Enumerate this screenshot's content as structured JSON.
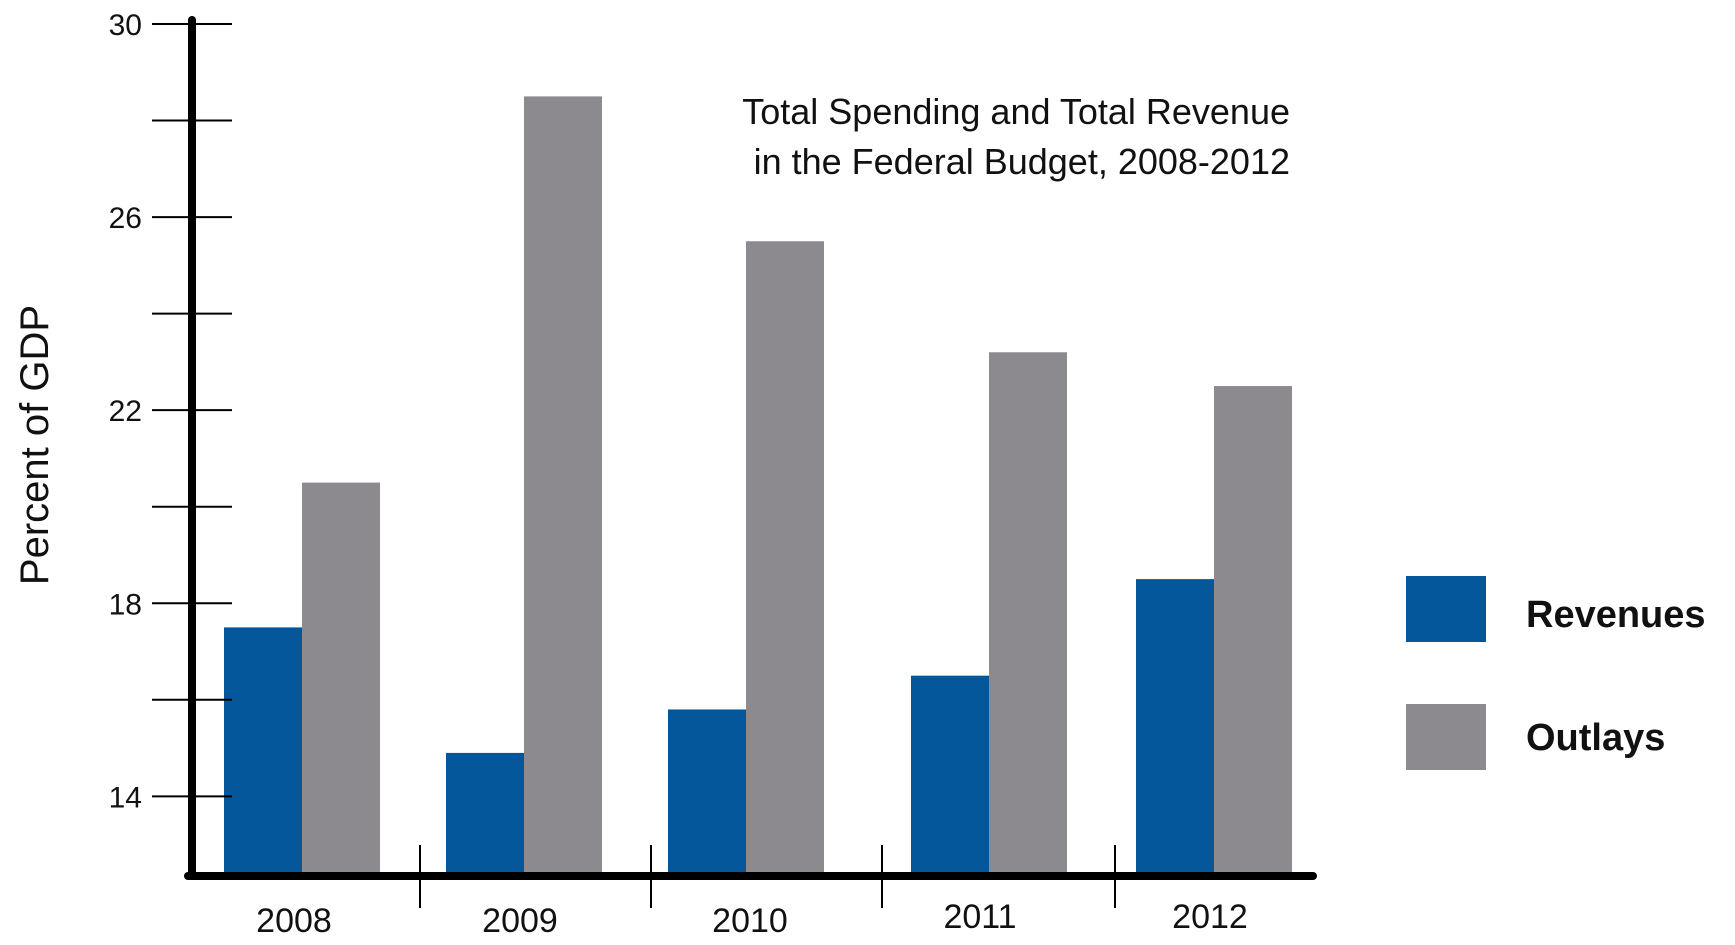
{
  "chart_data": {
    "type": "bar",
    "title_lines": [
      "Total Spending and Total Revenue",
      "in the Federal Budget, 2008-2012"
    ],
    "ylabel": "Percent of GDP",
    "xlabel": "",
    "categories": [
      "2008",
      "2009",
      "2010",
      "2011",
      "2012"
    ],
    "series": [
      {
        "name": "Revenues",
        "values": [
          17.5,
          14.9,
          15.8,
          16.5,
          18.5
        ],
        "color": "#03569a"
      },
      {
        "name": "Outlays",
        "values": [
          20.5,
          28.5,
          25.5,
          23.2,
          22.5
        ],
        "color": "#8c8a8f"
      }
    ],
    "ylim": [
      12.35,
      30
    ],
    "yticks": [
      14,
      18,
      22,
      26,
      30
    ],
    "minor_ticks": [
      16,
      20,
      24,
      28
    ],
    "grid": false,
    "legend_position": "right"
  }
}
